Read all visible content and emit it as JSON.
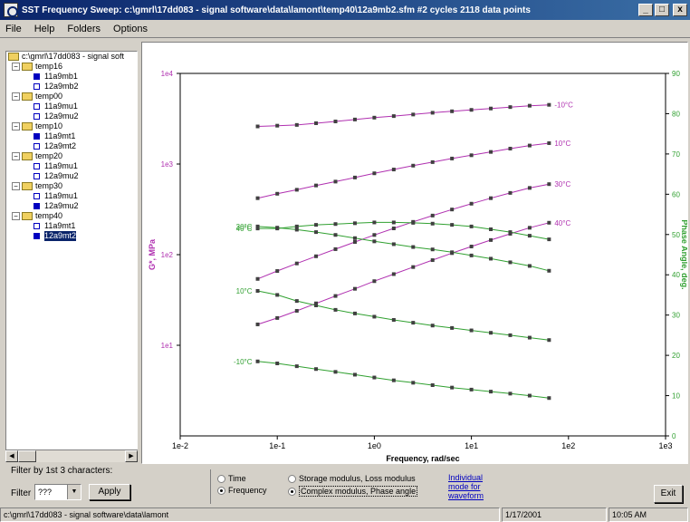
{
  "window": {
    "title": "SST Frequency Sweep: c:\\gmrl\\17dd083 - signal software\\data\\lamont\\temp40\\12a9mb2.sfm #2 cycles 2118 data points",
    "min": "_",
    "max": "□",
    "close": "x"
  },
  "menu": [
    "File",
    "Help",
    "Folders",
    "Options"
  ],
  "tree": {
    "root": "c:\\gmrl\\17dd083 - signal soft",
    "groups": [
      {
        "label": "temp16",
        "children": [
          {
            "label": "11a9mb1",
            "filled": true
          },
          {
            "label": "12a9mb2",
            "filled": false
          }
        ]
      },
      {
        "label": "temp00",
        "children": [
          {
            "label": "11a9mu1",
            "filled": false
          },
          {
            "label": "12a9mu2",
            "filled": false
          }
        ]
      },
      {
        "label": "temp10",
        "children": [
          {
            "label": "11a9mt1",
            "filled": true
          },
          {
            "label": "12a9mt2",
            "filled": false
          }
        ]
      },
      {
        "label": "temp20",
        "children": [
          {
            "label": "11a9mu1",
            "filled": false
          },
          {
            "label": "12a9mu2",
            "filled": false
          }
        ]
      },
      {
        "label": "temp30",
        "children": [
          {
            "label": "11a9mu1",
            "filled": false
          },
          {
            "label": "12a9mu2",
            "filled": true
          }
        ]
      },
      {
        "label": "temp40",
        "children": [
          {
            "label": "11a9mt1",
            "filled": false
          },
          {
            "label": "12a9mt2",
            "filled": true,
            "selected": true
          }
        ]
      }
    ]
  },
  "filter": {
    "caption": "Filter by 1st 3 characters:",
    "label": "Filter",
    "value": "???",
    "apply": "Apply"
  },
  "options": {
    "domain": [
      {
        "label": "Time",
        "checked": false
      },
      {
        "label": "Frequency",
        "checked": true
      }
    ],
    "plot": [
      {
        "label": "Storage modulus, Loss modulus",
        "checked": false
      },
      {
        "label": "Complex modulus, Phase angle",
        "checked": true
      }
    ],
    "link": "Individual mode for waveform"
  },
  "exit": "Exit",
  "status": {
    "path": "c:\\gmrl\\17dd083 - signal software\\data\\lamont",
    "date": "1/17/2001",
    "time": "10:05 AM"
  },
  "chart_data": {
    "type": "line",
    "xlabel": "Frequency, rad/sec",
    "ylabel_left": "G*, MPa",
    "ylabel_right": "Phase Angle, deg.",
    "x_scale": "log",
    "xlim": [
      0.01,
      1000
    ],
    "y_left_scale": "log",
    "y_left_lim": [
      1,
      10000
    ],
    "y_right_lim": [
      0,
      90
    ],
    "x_ticks": [
      "1e-2",
      "1e-1",
      "1e0",
      "1e1",
      "1e2",
      "1e3"
    ],
    "y_left_ticks": [
      "1e1",
      "1e2",
      "1e3",
      "1e4"
    ],
    "y_right_ticks": [
      "0",
      "10",
      "20",
      "30",
      "40",
      "50",
      "60",
      "70",
      "80",
      "90"
    ],
    "x": [
      0.0628,
      0.1,
      0.159,
      0.251,
      0.398,
      0.631,
      1.0,
      1.585,
      2.512,
      3.981,
      6.31,
      10.0,
      15.85,
      25.12,
      39.81,
      63.1
    ],
    "series": [
      {
        "name": "-10°C",
        "axis": "left",
        "color": "#b030b0",
        "values": [
          2600,
          2650,
          2700,
          2820,
          2950,
          3100,
          3250,
          3380,
          3520,
          3680,
          3820,
          3960,
          4100,
          4250,
          4400,
          4500
        ]
      },
      {
        "name": "10°C",
        "axis": "left",
        "color": "#b030b0",
        "values": [
          420,
          470,
          520,
          580,
          640,
          710,
          790,
          870,
          960,
          1050,
          1150,
          1250,
          1360,
          1480,
          1600,
          1700
        ]
      },
      {
        "name": "30°C",
        "axis": "left",
        "color": "#b030b0",
        "values": [
          54,
          66,
          80,
          96,
          115,
          138,
          165,
          195,
          230,
          270,
          315,
          365,
          420,
          480,
          545,
          600
        ]
      },
      {
        "name": "40°C",
        "axis": "left",
        "color": "#b030b0",
        "values": [
          17,
          20,
          24,
          29,
          35,
          42,
          51,
          61,
          73,
          87,
          104,
          123,
          145,
          170,
          198,
          225
        ]
      },
      {
        "name": "40°C",
        "axis": "right",
        "color": "#30a030",
        "values": [
          51.5,
          51.5,
          52.0,
          52.4,
          52.6,
          52.8,
          53.0,
          53.0,
          52.9,
          52.7,
          52.4,
          52.0,
          51.3,
          50.6,
          49.7,
          48.8
        ]
      },
      {
        "name": "30°C",
        "axis": "right",
        "color": "#30a030",
        "values": [
          52.0,
          51.7,
          51.2,
          50.6,
          49.9,
          49.1,
          48.3,
          47.6,
          46.9,
          46.3,
          45.6,
          44.8,
          44.0,
          43.1,
          42.2,
          41.0
        ]
      },
      {
        "name": "10°C",
        "axis": "right",
        "color": "#30a030",
        "values": [
          36.0,
          35.0,
          33.5,
          32.4,
          31.3,
          30.4,
          29.6,
          28.8,
          28.1,
          27.4,
          26.8,
          26.2,
          25.6,
          25.0,
          24.4,
          23.8
        ]
      },
      {
        "name": "-10°C",
        "axis": "right",
        "color": "#30a030",
        "values": [
          18.5,
          18.0,
          17.3,
          16.6,
          15.9,
          15.2,
          14.5,
          13.8,
          13.2,
          12.6,
          12.0,
          11.5,
          11.0,
          10.5,
          10.0,
          9.4
        ]
      }
    ]
  }
}
